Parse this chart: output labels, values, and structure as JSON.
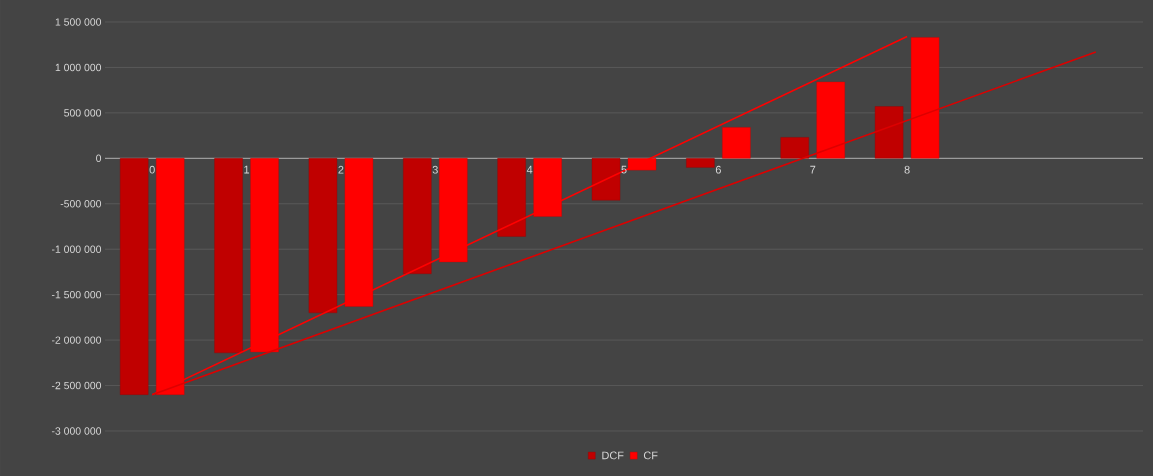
{
  "chart_data": {
    "type": "bar",
    "categories": [
      "0",
      "1",
      "2",
      "3",
      "4",
      "5",
      "6",
      "7",
      "8",
      null,
      null
    ],
    "series": [
      {
        "name": "DCF",
        "color": "#c00000",
        "values": [
          -2600000,
          -2140000,
          -1700000,
          -1270000,
          -860000,
          -460000,
          -100000,
          230000,
          570000,
          null,
          null
        ]
      },
      {
        "name": "CF",
        "color": "#ff0000",
        "values": [
          -2600000,
          -2130000,
          -1630000,
          -1140000,
          -640000,
          -130000,
          340000,
          840000,
          1330000,
          null,
          null
        ]
      },
      {
        "type": "line",
        "color": "#ff0000",
        "values": [
          -2600000,
          null,
          null,
          null,
          null,
          null,
          null,
          null,
          1340000,
          null,
          null
        ]
      },
      {
        "type": "line",
        "color": "#dd0000",
        "values": [
          -2600000,
          null,
          null,
          null,
          null,
          null,
          null,
          null,
          null,
          null,
          1170000
        ]
      }
    ],
    "ylim": [
      -3000000,
      1500000
    ],
    "yticks": [
      {
        "value": -3000000,
        "label": "-3 000 000"
      },
      {
        "value": -2500000,
        "label": "-2 500 000"
      },
      {
        "value": -2000000,
        "label": "-2 000 000"
      },
      {
        "value": -1500000,
        "label": "-1 500 000"
      },
      {
        "value": -1000000,
        "label": "-1 000 000"
      },
      {
        "value": -500000,
        "label": "-500 000"
      },
      {
        "value": 0,
        "label": "0"
      },
      {
        "value": 500000,
        "label": "500 000"
      },
      {
        "value": 1000000,
        "label": "1 000 000"
      },
      {
        "value": 1500000,
        "label": "1 500 000"
      }
    ],
    "grid": "y",
    "legend": "bottom",
    "line_style": "solid",
    "marker": "none"
  }
}
